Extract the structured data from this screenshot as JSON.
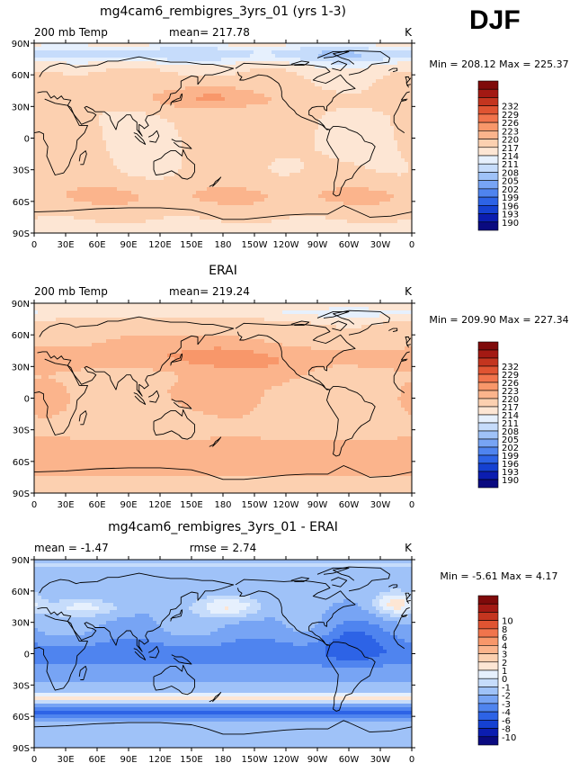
{
  "season": "DJF",
  "palette": {
    "t": [
      "#0a0a80",
      "#0b1db0",
      "#1541d2",
      "#2d63e6",
      "#4f84ef",
      "#77a4f4",
      "#9fc2f8",
      "#c6dcfb",
      "#e6f0fd",
      "#fde6d4",
      "#fcd0b0",
      "#fbb48c",
      "#f8976a",
      "#f1744c",
      "#e05432",
      "#c4351f",
      "#a31913",
      "#7f0a0a"
    ],
    "d": [
      "#0a0a80",
      "#0b1db0",
      "#1541d2",
      "#2d63e6",
      "#4f84ef",
      "#77a4f4",
      "#9fc2f8",
      "#c6dcfb",
      "#e6f0fd",
      "#fde6d4",
      "#fcd0b0",
      "#fbb48c",
      "#f8976a",
      "#f1744c",
      "#e05432",
      "#c4351f",
      "#a31913",
      "#7f0a0a"
    ]
  },
  "chart_data": [
    {
      "type": "heatmap",
      "title": "mg4cam6_rembigres_3yrs_01 (yrs 1-3)",
      "left_label": "200 mb Temp",
      "center_label": "mean= 217.78",
      "right_label": "K",
      "stats_label": "Min = 208.12 Max = 225.37",
      "mean": 217.78,
      "min": 208.12,
      "max": 225.37,
      "units": "K",
      "x_ticks": [
        "0",
        "30E",
        "60E",
        "90E",
        "120E",
        "150E",
        "180",
        "150W",
        "120W",
        "90W",
        "60W",
        "30W",
        "0"
      ],
      "y_ticks": [
        "90N",
        "60N",
        "30N",
        "0",
        "30S",
        "60S",
        "90S"
      ],
      "legend_levels": [
        "190",
        "193",
        "196",
        "199",
        "202",
        "205",
        "208",
        "211",
        "214",
        "217",
        "220",
        "223",
        "226",
        "229",
        "232"
      ]
    },
    {
      "type": "heatmap",
      "title": "ERAI",
      "left_label": "200 mb Temp",
      "center_label": "mean= 219.24",
      "right_label": "K",
      "stats_label": "Min = 209.90 Max = 227.34",
      "mean": 219.24,
      "min": 209.9,
      "max": 227.34,
      "units": "K",
      "x_ticks": [
        "0",
        "30E",
        "60E",
        "90E",
        "120E",
        "150E",
        "180",
        "150W",
        "120W",
        "90W",
        "60W",
        "30W",
        "0"
      ],
      "y_ticks": [
        "90N",
        "60N",
        "30N",
        "0",
        "30S",
        "60S",
        "90S"
      ],
      "legend_levels": [
        "190",
        "193",
        "196",
        "199",
        "202",
        "205",
        "208",
        "211",
        "214",
        "217",
        "220",
        "223",
        "226",
        "229",
        "232"
      ]
    },
    {
      "type": "heatmap",
      "title": "mg4cam6_rembigres_3yrs_01 - ERAI",
      "left_label": "mean =  -1.47",
      "center_label": "rmse =   2.74",
      "right_label": "K",
      "stats_label": "Min =  -5.61 Max =   4.17",
      "mean": -1.47,
      "rmse": 2.74,
      "min": -5.61,
      "max": 4.17,
      "units": "K",
      "x_ticks": [
        "0",
        "30E",
        "60E",
        "90E",
        "120E",
        "150E",
        "180",
        "150W",
        "120W",
        "90W",
        "60W",
        "30W",
        "0"
      ],
      "y_ticks": [
        "90N",
        "60N",
        "30N",
        "0",
        "30S",
        "60S",
        "90S"
      ],
      "legend_levels": [
        "-10",
        "-8",
        "-6",
        "-4",
        "-3",
        "-2",
        "-1",
        "0",
        "1",
        "2",
        "3",
        "4",
        "6",
        "8",
        "10"
      ]
    }
  ]
}
